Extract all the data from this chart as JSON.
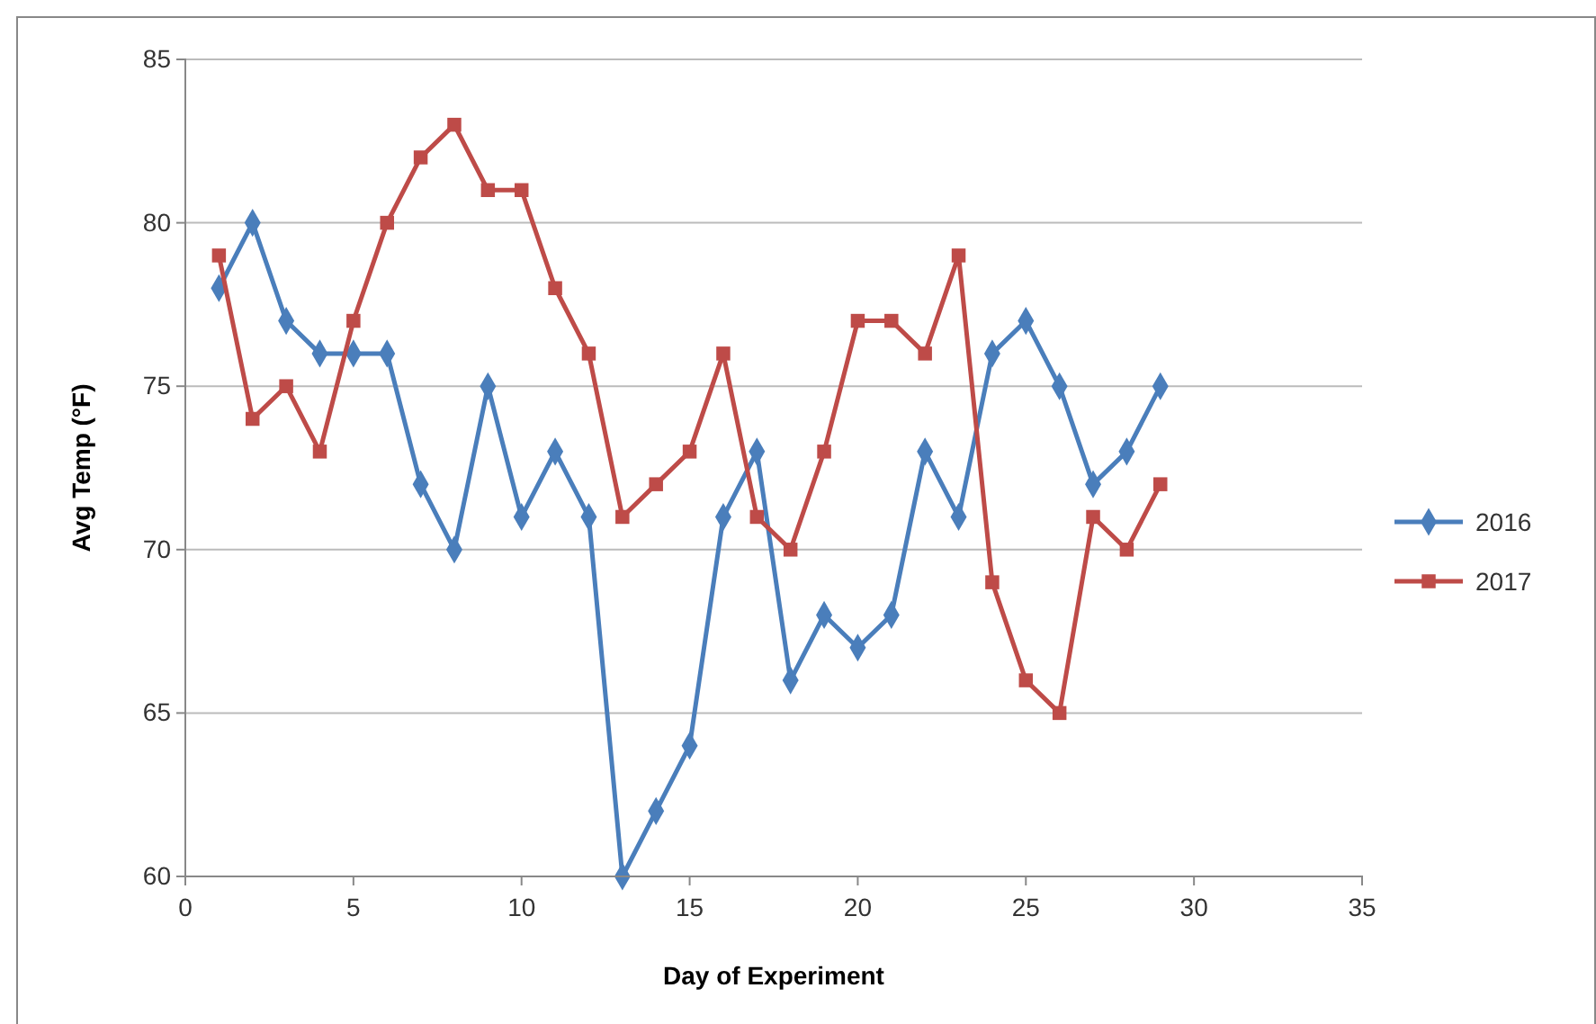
{
  "chart_data": {
    "type": "line",
    "xlabel": "Day of Experiment",
    "ylabel": "Avg Temp (°F)",
    "x": [
      1,
      2,
      3,
      4,
      5,
      6,
      7,
      8,
      9,
      10,
      11,
      12,
      13,
      14,
      15,
      16,
      17,
      18,
      19,
      20,
      21,
      22,
      23,
      24,
      25,
      26,
      27,
      28,
      29
    ],
    "series": [
      {
        "name": "2016",
        "color": "#4a7ebb",
        "marker": "diamond",
        "values": [
          78,
          80,
          77,
          76,
          76,
          76,
          72,
          70,
          75,
          71,
          73,
          71,
          60,
          62,
          64,
          71,
          73,
          66,
          68,
          67,
          68,
          73,
          71,
          76,
          77,
          75,
          72,
          73,
          75
        ]
      },
      {
        "name": "2017",
        "color": "#be4b48",
        "marker": "square",
        "values": [
          79,
          74,
          75,
          73,
          77,
          80,
          82,
          83,
          81,
          81,
          78,
          76,
          71,
          72,
          73,
          76,
          71,
          70,
          73,
          77,
          77,
          76,
          79,
          69,
          66,
          65,
          71,
          70,
          72
        ]
      }
    ],
    "xlim": [
      0,
      35
    ],
    "xticks": [
      0,
      5,
      10,
      15,
      20,
      25,
      30,
      35
    ],
    "ylim": [
      60,
      85
    ],
    "yticks": [
      60,
      65,
      70,
      75,
      80,
      85
    ],
    "grid": "y",
    "legend": "right",
    "line_style": "solid"
  }
}
